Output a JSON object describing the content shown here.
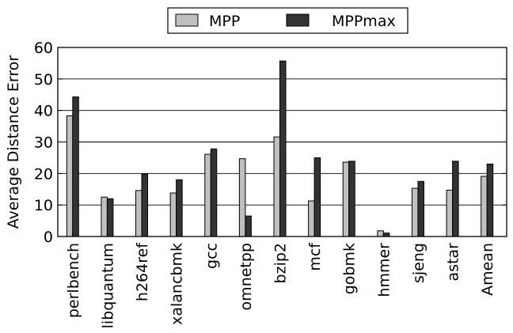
{
  "chart_data": {
    "type": "bar",
    "title": "",
    "xlabel": "",
    "ylabel": "Average Distance Error",
    "ylim": [
      0,
      60
    ],
    "yticks": [
      0,
      10,
      20,
      30,
      40,
      50,
      60
    ],
    "grid": "horizontal",
    "legend_position": "top-center",
    "categories": [
      "perlbench",
      "libquantum",
      "h264ref",
      "xalancbmk",
      "gcc",
      "omnetpp",
      "bzip2",
      "mcf",
      "gobmk",
      "hmmer",
      "sjeng",
      "astar",
      "Amean"
    ],
    "series": [
      {
        "name": "MPP",
        "color": "#c0c0c0",
        "values": [
          38.3,
          12.5,
          14.6,
          13.8,
          26.1,
          24.7,
          31.6,
          11.3,
          23.6,
          1.8,
          15.3,
          14.7,
          19.1
        ]
      },
      {
        "name": "MPPmax",
        "color": "#333333",
        "values": [
          44.3,
          12.0,
          19.8,
          18.0,
          27.8,
          6.5,
          55.7,
          25.0,
          23.9,
          1.1,
          17.5,
          23.9,
          23.0
        ]
      }
    ]
  }
}
